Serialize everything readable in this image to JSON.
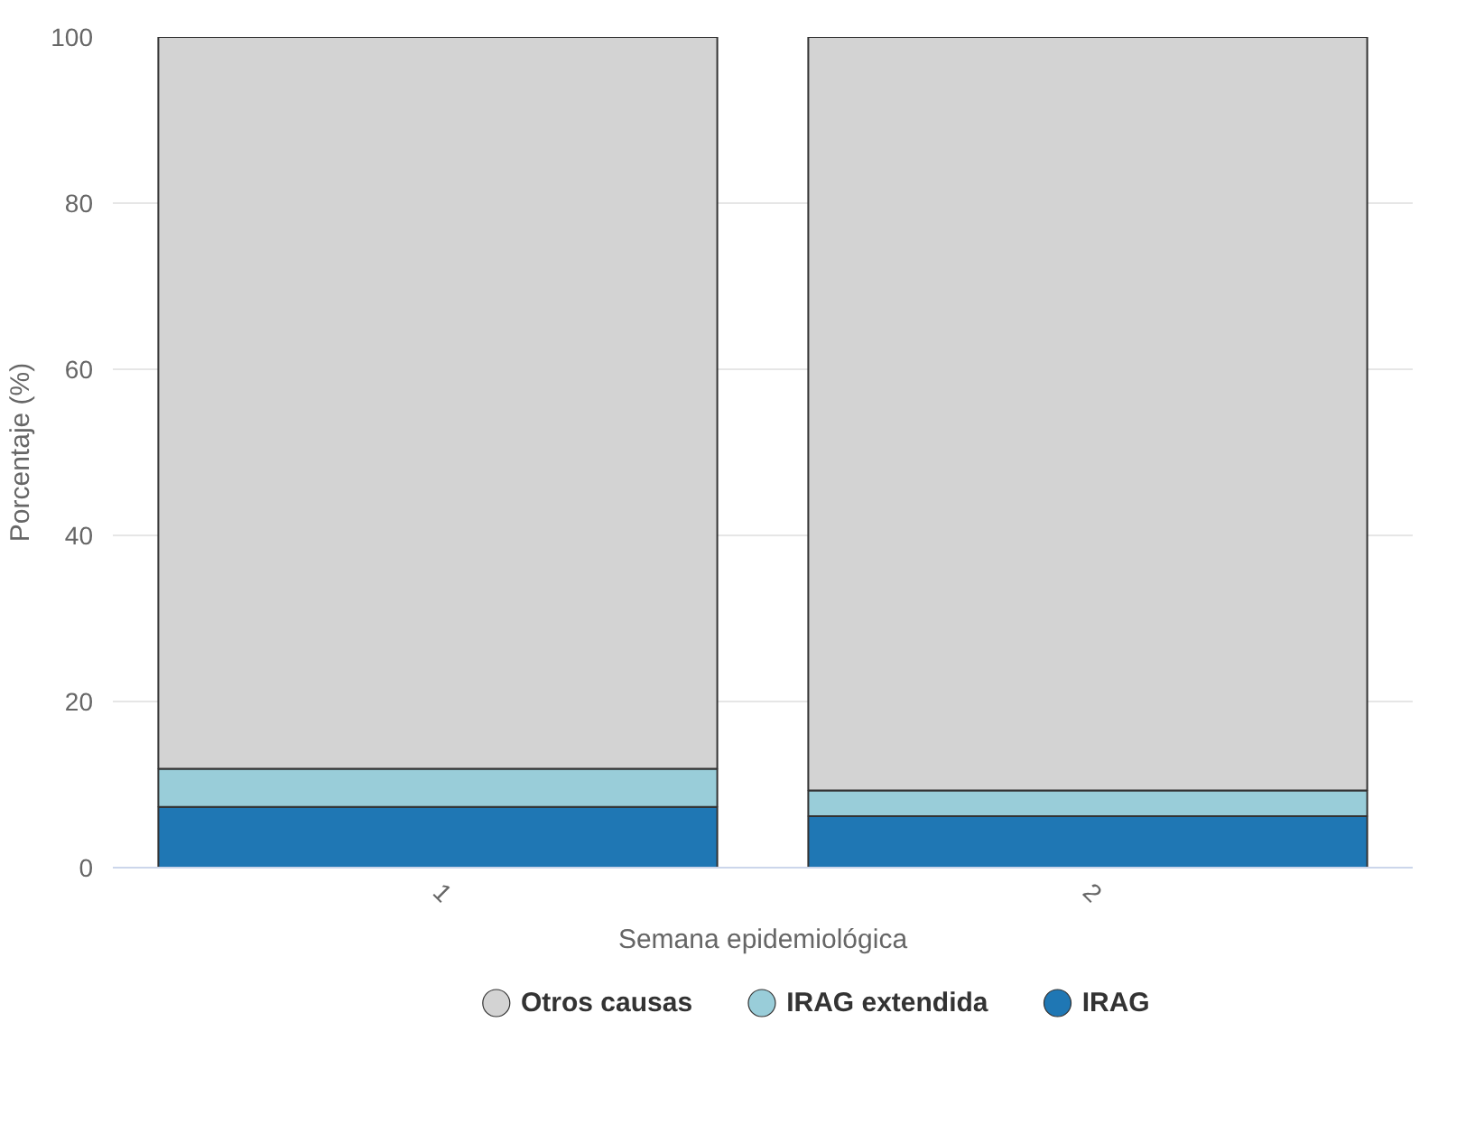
{
  "chart_data": {
    "type": "bar",
    "stacked": true,
    "xlabel": "Semana epidemiológica",
    "ylabel": "Porcentaje (%)",
    "categories": [
      "1",
      "2"
    ],
    "series": [
      {
        "name": "IRAG",
        "color": "#1f77b4",
        "values": [
          7.3,
          6.2
        ]
      },
      {
        "name": "IRAG extendida",
        "color": "#99cdd9",
        "values": [
          4.6,
          3.1
        ]
      },
      {
        "name": "Otros causas",
        "color": "#d3d3d3",
        "values": [
          88.1,
          90.7
        ]
      }
    ],
    "ylim": [
      0,
      100
    ],
    "yticks": [
      0,
      20,
      40,
      60,
      80,
      100
    ],
    "grid": "y",
    "legend": "bottom"
  }
}
